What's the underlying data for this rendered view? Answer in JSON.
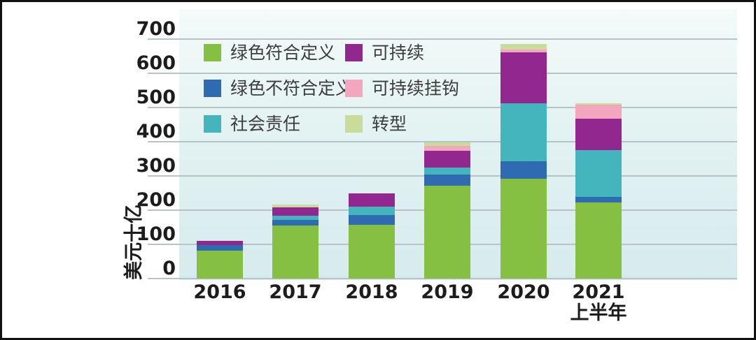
{
  "chart_data": {
    "type": "bar",
    "stacked": true,
    "title": "",
    "ylabel": "美元十亿",
    "xlabel": "",
    "ylim": [
      0,
      700
    ],
    "yticks": [
      0,
      100,
      200,
      300,
      400,
      500,
      600,
      700
    ],
    "grid": true,
    "legend_position": "top-left-inside",
    "categories": [
      "2016",
      "2017",
      "2018",
      "2019",
      "2020",
      "2021"
    ],
    "category_sublabels": [
      "",
      "",
      "",
      "",
      "",
      "上半年"
    ],
    "series": [
      {
        "name": "绿色符合定义",
        "color": "#85c043",
        "values": [
          82,
          155,
          158,
          272,
          291,
          222
        ]
      },
      {
        "name": "绿色不符合定义",
        "color": "#2e6bb0",
        "values": [
          15,
          16,
          27,
          33,
          51,
          17
        ]
      },
      {
        "name": "社会责任",
        "color": "#45b5bd",
        "values": [
          0,
          12,
          25,
          20,
          170,
          136
        ]
      },
      {
        "name": "可持续",
        "color": "#92278f",
        "values": [
          14,
          25,
          40,
          48,
          150,
          92
        ]
      },
      {
        "name": "可持续挂钩",
        "color": "#f4a6be",
        "values": [
          0,
          0,
          0,
          14,
          7,
          41
        ]
      },
      {
        "name": "转型",
        "color": "#c9dc9a",
        "values": [
          0,
          8,
          0,
          10,
          17,
          5
        ]
      }
    ],
    "legend_columns": [
      [
        0,
        1,
        2
      ],
      [
        3,
        4,
        5
      ]
    ],
    "totals": [
      111,
      216,
      250,
      397,
      686,
      513
    ]
  }
}
